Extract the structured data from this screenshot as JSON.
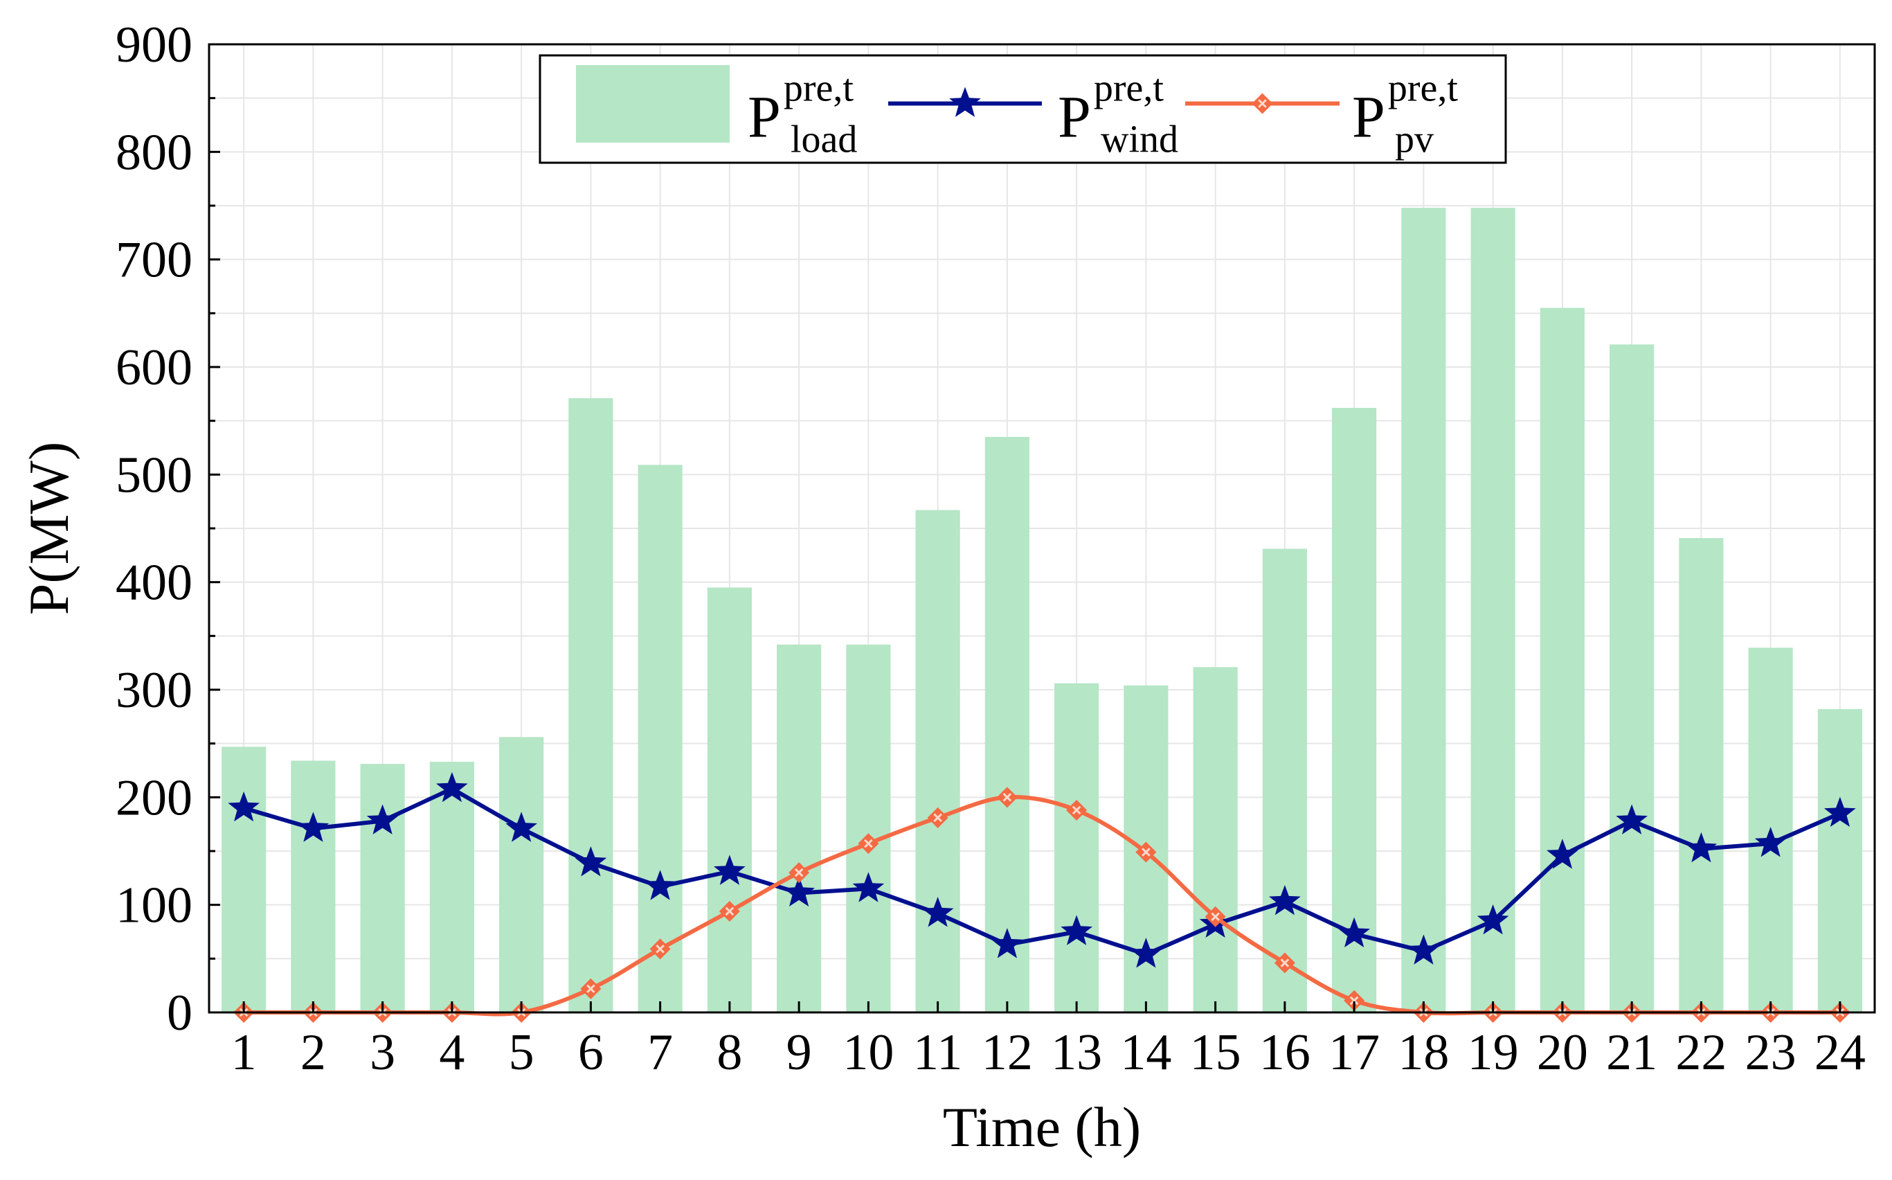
{
  "chart_data": {
    "type": "bar",
    "title": "",
    "xlabel": "Time (h)",
    "ylabel": "P(MW)",
    "ylim": [
      0,
      900
    ],
    "yticks": [
      0,
      100,
      200,
      300,
      400,
      500,
      600,
      700,
      800,
      900
    ],
    "grid": true,
    "legend_position": "top-center",
    "categories": [
      "1",
      "2",
      "3",
      "4",
      "5",
      "6",
      "7",
      "8",
      "9",
      "10",
      "11",
      "12",
      "13",
      "14",
      "15",
      "16",
      "17",
      "18",
      "19",
      "20",
      "21",
      "22",
      "23",
      "24"
    ],
    "series": [
      {
        "type": "bar",
        "legend": {
          "base": "P",
          "sup": "pre,t",
          "sub": "load"
        },
        "color": "#b5e6c6",
        "values": [
          247,
          234,
          231,
          233,
          256,
          571,
          509,
          395,
          342,
          342,
          467,
          535,
          306,
          304,
          321,
          431,
          562,
          748,
          748,
          655,
          621,
          441,
          339,
          282
        ]
      },
      {
        "type": "line",
        "marker": "star",
        "legend": {
          "base": "P",
          "sup": "pre,t",
          "sub": "wind"
        },
        "color": "#00108f",
        "values": [
          190,
          171,
          178,
          208,
          171,
          139,
          117,
          131,
          111,
          115,
          92,
          63,
          75,
          54,
          82,
          103,
          73,
          57,
          85,
          146,
          178,
          152,
          157,
          185
        ]
      },
      {
        "type": "line",
        "marker": "diamond",
        "legend": {
          "base": "P",
          "sup": "pre,t",
          "sub": "pv"
        },
        "color": "#f46a43",
        "values": [
          0,
          0,
          0,
          0,
          0,
          22,
          59,
          94,
          130,
          157,
          181,
          200,
          188,
          149,
          89,
          46,
          11,
          0,
          0,
          0,
          0,
          0,
          0,
          0
        ]
      }
    ]
  }
}
